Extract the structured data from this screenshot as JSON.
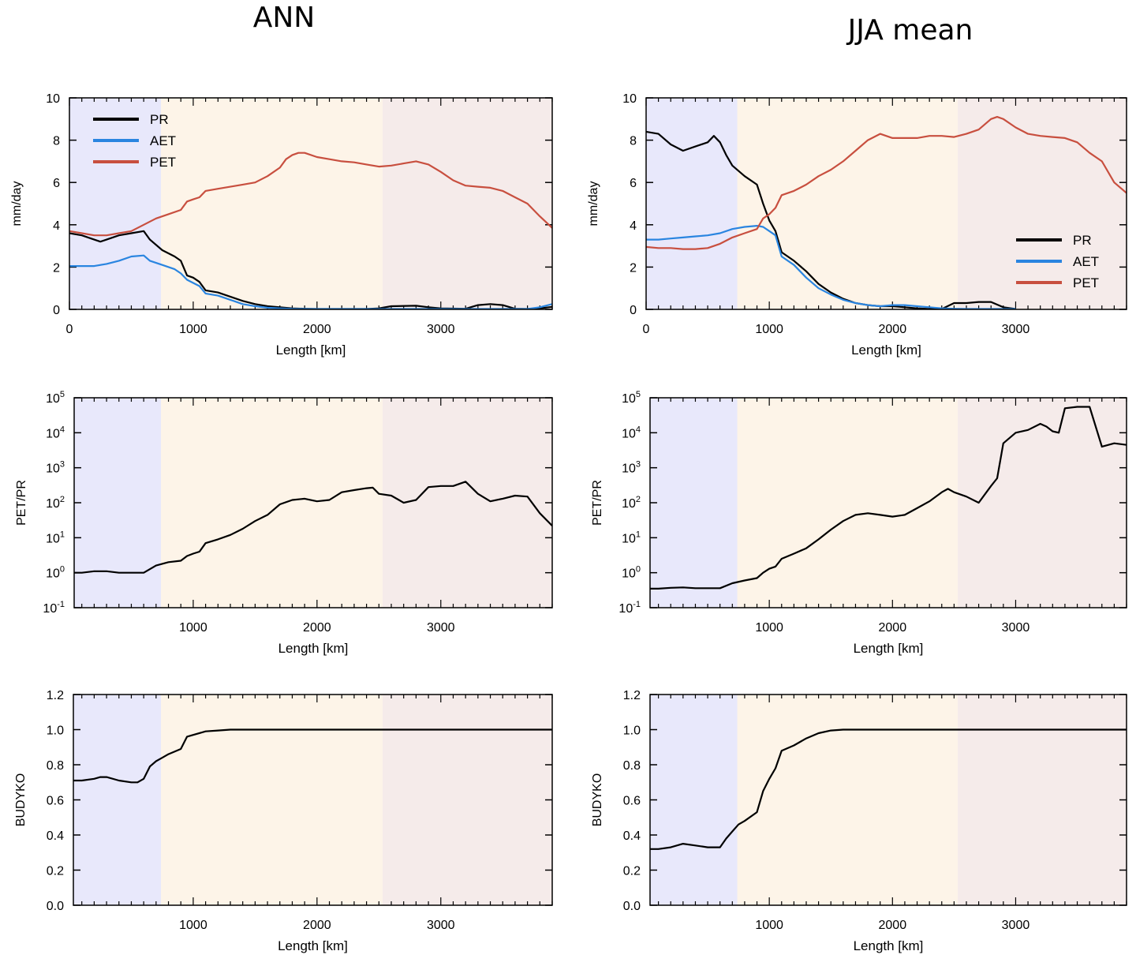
{
  "titles": {
    "left": "ANN",
    "right": "JJA mean"
  },
  "colors": {
    "region1": "#e8e8fb",
    "region2": "#fdf4e8",
    "region3": "#f5ebea",
    "PR": "#000000",
    "AET": "#2a85e0",
    "PET": "#c84f3f"
  },
  "chart_data": [
    {
      "type": "line",
      "panel": "ANN-top",
      "title": "ANN",
      "xlabel": "Length [km]",
      "ylabel": "mm/day",
      "xlim": [
        0,
        3900
      ],
      "ylim": [
        0,
        10
      ],
      "xticks": [
        "0",
        "1000",
        "2000",
        "3000"
      ],
      "yticks": [
        "0",
        "2",
        "4",
        "6",
        "8",
        "10"
      ],
      "regions": [
        [
          0,
          740
        ],
        [
          740,
          2530
        ],
        [
          2530,
          3900
        ]
      ],
      "legend": {
        "placement": "top-left",
        "entries": [
          "PR",
          "AET",
          "PET"
        ]
      },
      "series": [
        {
          "name": "PR",
          "x": [
            0,
            100,
            200,
            250,
            300,
            400,
            500,
            600,
            650,
            750,
            850,
            900,
            950,
            1000,
            1050,
            1100,
            1200,
            1300,
            1400,
            1500,
            1600,
            1700,
            1800,
            1900,
            2000,
            2200,
            2400,
            2500,
            2600,
            2800,
            2900,
            3000,
            3200,
            3300,
            3400,
            3500,
            3600,
            3700,
            3800,
            3900
          ],
          "y": [
            3.6,
            3.5,
            3.3,
            3.2,
            3.3,
            3.5,
            3.6,
            3.7,
            3.3,
            2.8,
            2.5,
            2.3,
            1.6,
            1.5,
            1.3,
            0.9,
            0.8,
            0.6,
            0.4,
            0.25,
            0.15,
            0.1,
            0.05,
            0.03,
            0.02,
            0.02,
            0.02,
            0.05,
            0.15,
            0.17,
            0.1,
            0.05,
            0.03,
            0.2,
            0.25,
            0.2,
            0.03,
            0.02,
            0.05,
            0.12
          ]
        },
        {
          "name": "AET",
          "x": [
            0,
            100,
            200,
            300,
            400,
            500,
            600,
            650,
            750,
            850,
            900,
            950,
            1000,
            1050,
            1100,
            1200,
            1300,
            1400,
            1500,
            1600,
            1700,
            1800,
            2000,
            2500,
            3000,
            3600,
            3700,
            3800,
            3900
          ],
          "y": [
            2.05,
            2.05,
            2.05,
            2.15,
            2.3,
            2.5,
            2.55,
            2.3,
            2.1,
            1.9,
            1.7,
            1.4,
            1.25,
            1.1,
            0.75,
            0.65,
            0.45,
            0.25,
            0.15,
            0.08,
            0.05,
            0.03,
            0.02,
            0.02,
            0.02,
            0.02,
            0.02,
            0.1,
            0.25
          ]
        },
        {
          "name": "PET",
          "x": [
            0,
            100,
            200,
            300,
            400,
            500,
            600,
            700,
            800,
            900,
            950,
            1000,
            1050,
            1100,
            1200,
            1300,
            1400,
            1500,
            1600,
            1700,
            1750,
            1800,
            1850,
            1900,
            2000,
            2100,
            2200,
            2300,
            2400,
            2500,
            2600,
            2700,
            2800,
            2900,
            3000,
            3100,
            3200,
            3300,
            3400,
            3500,
            3600,
            3700,
            3800,
            3900
          ],
          "y": [
            3.7,
            3.6,
            3.5,
            3.5,
            3.6,
            3.7,
            4.0,
            4.3,
            4.5,
            4.7,
            5.1,
            5.2,
            5.3,
            5.6,
            5.7,
            5.8,
            5.9,
            6.0,
            6.3,
            6.7,
            7.1,
            7.3,
            7.4,
            7.4,
            7.2,
            7.1,
            7.0,
            6.95,
            6.85,
            6.75,
            6.8,
            6.9,
            7.0,
            6.85,
            6.5,
            6.1,
            5.85,
            5.8,
            5.75,
            5.6,
            5.3,
            5.0,
            4.4,
            3.85
          ]
        }
      ]
    },
    {
      "type": "line",
      "panel": "JJA-top",
      "title": "JJA mean",
      "xlabel": "Length [km]",
      "ylabel": "mm/day",
      "xlim": [
        0,
        3900
      ],
      "ylim": [
        0,
        10
      ],
      "xticks": [
        "0",
        "1000",
        "2000",
        "3000"
      ],
      "yticks": [
        "0",
        "2",
        "4",
        "6",
        "8",
        "10"
      ],
      "regions": [
        [
          0,
          740
        ],
        [
          740,
          2530
        ],
        [
          2530,
          3900
        ]
      ],
      "legend": {
        "placement": "bottom-right",
        "entries": [
          "PR",
          "AET",
          "PET"
        ]
      },
      "series": [
        {
          "name": "PR",
          "x": [
            0,
            100,
            200,
            300,
            400,
            500,
            550,
            600,
            650,
            700,
            800,
            900,
            950,
            1000,
            1050,
            1100,
            1200,
            1300,
            1400,
            1500,
            1600,
            1700,
            1800,
            1900,
            2000,
            2100,
            2200,
            2300,
            2400,
            2500,
            2600,
            2700,
            2800,
            2900,
            3000
          ],
          "y": [
            8.4,
            8.3,
            7.8,
            7.5,
            7.7,
            7.9,
            8.2,
            7.9,
            7.3,
            6.8,
            6.3,
            5.9,
            5.0,
            4.2,
            3.7,
            2.7,
            2.3,
            1.8,
            1.2,
            0.8,
            0.5,
            0.3,
            0.2,
            0.15,
            0.15,
            0.1,
            0.05,
            0.02,
            0.02,
            0.3,
            0.3,
            0.35,
            0.35,
            0.1,
            0.02
          ]
        },
        {
          "name": "AET",
          "x": [
            0,
            100,
            200,
            300,
            400,
            500,
            600,
            700,
            800,
            900,
            950,
            1000,
            1050,
            1100,
            1200,
            1300,
            1400,
            1500,
            1600,
            1700,
            1800,
            1900,
            2000,
            2100,
            2200,
            2300,
            2400,
            2500,
            2600,
            2700,
            2800,
            2900,
            3000
          ],
          "y": [
            3.3,
            3.3,
            3.35,
            3.4,
            3.45,
            3.5,
            3.6,
            3.8,
            3.9,
            3.95,
            3.9,
            3.7,
            3.5,
            2.5,
            2.1,
            1.5,
            1.0,
            0.7,
            0.45,
            0.3,
            0.2,
            0.15,
            0.2,
            0.2,
            0.15,
            0.1,
            0.05,
            0.03,
            0.02,
            0.02,
            0.02,
            0.02,
            0.02
          ]
        },
        {
          "name": "PET",
          "x": [
            0,
            100,
            200,
            300,
            400,
            500,
            600,
            700,
            800,
            900,
            950,
            1000,
            1050,
            1100,
            1200,
            1300,
            1400,
            1500,
            1600,
            1700,
            1800,
            1900,
            2000,
            2100,
            2200,
            2300,
            2400,
            2500,
            2600,
            2700,
            2800,
            2850,
            2900,
            3000,
            3100,
            3200,
            3300,
            3400,
            3500,
            3600,
            3700,
            3800,
            3900
          ],
          "y": [
            2.95,
            2.9,
            2.9,
            2.85,
            2.85,
            2.9,
            3.1,
            3.4,
            3.6,
            3.8,
            4.3,
            4.5,
            4.8,
            5.4,
            5.6,
            5.9,
            6.3,
            6.6,
            7.0,
            7.5,
            8.0,
            8.3,
            8.1,
            8.1,
            8.1,
            8.2,
            8.2,
            8.15,
            8.3,
            8.5,
            9.0,
            9.1,
            9.0,
            8.6,
            8.3,
            8.2,
            8.15,
            8.1,
            7.9,
            7.4,
            7.0,
            6.0,
            5.5
          ]
        }
      ]
    },
    {
      "type": "line",
      "panel": "ANN-middle",
      "xlabel": "Length [km]",
      "ylabel": "PET/PR",
      "yscale": "log",
      "xlim": [
        0,
        3900
      ],
      "ylim": [
        0.1,
        100000
      ],
      "xticks": [
        "1000",
        "2000",
        "3000"
      ],
      "yticks": [
        "10-1",
        "100",
        "101",
        "102",
        "103",
        "104",
        "105"
      ],
      "regions": [
        [
          0,
          740
        ],
        [
          740,
          2530
        ],
        [
          2530,
          3900
        ]
      ],
      "series": [
        {
          "name": "",
          "x": [
            0,
            100,
            200,
            300,
            400,
            500,
            600,
            700,
            800,
            900,
            950,
            1000,
            1050,
            1100,
            1200,
            1300,
            1400,
            1500,
            1600,
            1700,
            1800,
            1900,
            2000,
            2100,
            2200,
            2300,
            2400,
            2450,
            2500,
            2600,
            2700,
            2800,
            2900,
            3000,
            3100,
            3200,
            3300,
            3400,
            3500,
            3600,
            3700,
            3800,
            3900
          ],
          "y": [
            1.0,
            1.0,
            1.1,
            1.1,
            1.0,
            1.0,
            1.0,
            1.6,
            2.0,
            2.2,
            3.0,
            3.5,
            4.0,
            7.0,
            9.0,
            12,
            18,
            30,
            45,
            90,
            120,
            130,
            110,
            120,
            200,
            230,
            260,
            270,
            180,
            160,
            100,
            120,
            280,
            300,
            300,
            400,
            180,
            110,
            130,
            160,
            150,
            50,
            22
          ]
        }
      ]
    },
    {
      "type": "line",
      "panel": "JJA-middle",
      "xlabel": "Length [km]",
      "ylabel": "PET/PR",
      "yscale": "log",
      "xlim": [
        0,
        3900
      ],
      "ylim": [
        0.1,
        100000
      ],
      "xticks": [
        "1000",
        "2000",
        "3000"
      ],
      "yticks": [
        "10-1",
        "100",
        "101",
        "102",
        "103",
        "104",
        "105"
      ],
      "regions": [
        [
          0,
          740
        ],
        [
          740,
          2530
        ],
        [
          2530,
          3900
        ]
      ],
      "series": [
        {
          "name": "",
          "x": [
            0,
            100,
            200,
            300,
            400,
            500,
            600,
            700,
            800,
            900,
            950,
            1000,
            1050,
            1100,
            1200,
            1300,
            1400,
            1500,
            1600,
            1700,
            1800,
            1900,
            2000,
            2100,
            2200,
            2300,
            2400,
            2450,
            2500,
            2600,
            2700,
            2800,
            2850,
            2900,
            3000,
            3100,
            3200,
            3250,
            3300,
            3350,
            3400,
            3500,
            3600,
            3700,
            3800,
            3900
          ],
          "y": [
            0.35,
            0.35,
            0.37,
            0.38,
            0.36,
            0.36,
            0.36,
            0.5,
            0.6,
            0.7,
            1.0,
            1.3,
            1.5,
            2.5,
            3.5,
            5,
            9,
            17,
            30,
            45,
            50,
            45,
            40,
            45,
            70,
            110,
            200,
            250,
            200,
            150,
            100,
            300,
            500,
            5000,
            10000,
            12000,
            18000,
            15000,
            11000,
            10000,
            50000,
            55000,
            55000,
            4000,
            5000,
            4500
          ]
        }
      ]
    },
    {
      "type": "line",
      "panel": "ANN-bottom",
      "xlabel": "Length [km]",
      "ylabel": "BUDYKO",
      "xlim": [
        0,
        3900
      ],
      "ylim": [
        0,
        1.2
      ],
      "xticks": [
        "1000",
        "2000",
        "3000"
      ],
      "yticks": [
        "0.0",
        "0.2",
        "0.4",
        "0.6",
        "0.8",
        "1.0",
        "1.2"
      ],
      "regions": [
        [
          0,
          740
        ],
        [
          740,
          2530
        ],
        [
          2530,
          3900
        ]
      ],
      "series": [
        {
          "name": "",
          "x": [
            0,
            100,
            200,
            250,
            300,
            400,
            500,
            550,
            600,
            650,
            700,
            750,
            800,
            900,
            950,
            1000,
            1100,
            1200,
            1300,
            1500,
            2000,
            2500,
            3000,
            3500,
            3900
          ],
          "y": [
            0.71,
            0.71,
            0.72,
            0.73,
            0.73,
            0.71,
            0.7,
            0.7,
            0.72,
            0.79,
            0.82,
            0.84,
            0.86,
            0.89,
            0.96,
            0.97,
            0.99,
            0.995,
            1.0,
            1.0,
            1.0,
            1.0,
            1.0,
            1.0,
            1.0
          ]
        }
      ]
    },
    {
      "type": "line",
      "panel": "JJA-bottom",
      "xlabel": "Length [km]",
      "ylabel": "BUDYKO",
      "xlim": [
        0,
        3900
      ],
      "ylim": [
        0,
        1.2
      ],
      "xticks": [
        "1000",
        "2000",
        "3000"
      ],
      "yticks": [
        "0.0",
        "0.2",
        "0.4",
        "0.6",
        "0.8",
        "1.0",
        "1.2"
      ],
      "regions": [
        [
          0,
          740
        ],
        [
          740,
          2530
        ],
        [
          2530,
          3900
        ]
      ],
      "series": [
        {
          "name": "",
          "x": [
            0,
            100,
            200,
            300,
            400,
            500,
            600,
            650,
            700,
            750,
            800,
            900,
            950,
            1000,
            1050,
            1100,
            1200,
            1300,
            1400,
            1500,
            1600,
            2000,
            2500,
            3000,
            3500,
            3900
          ],
          "y": [
            0.32,
            0.32,
            0.33,
            0.35,
            0.34,
            0.33,
            0.33,
            0.38,
            0.42,
            0.46,
            0.48,
            0.53,
            0.65,
            0.72,
            0.78,
            0.88,
            0.91,
            0.95,
            0.98,
            0.995,
            1.0,
            1.0,
            1.0,
            1.0,
            1.0,
            1.0
          ]
        }
      ]
    }
  ]
}
